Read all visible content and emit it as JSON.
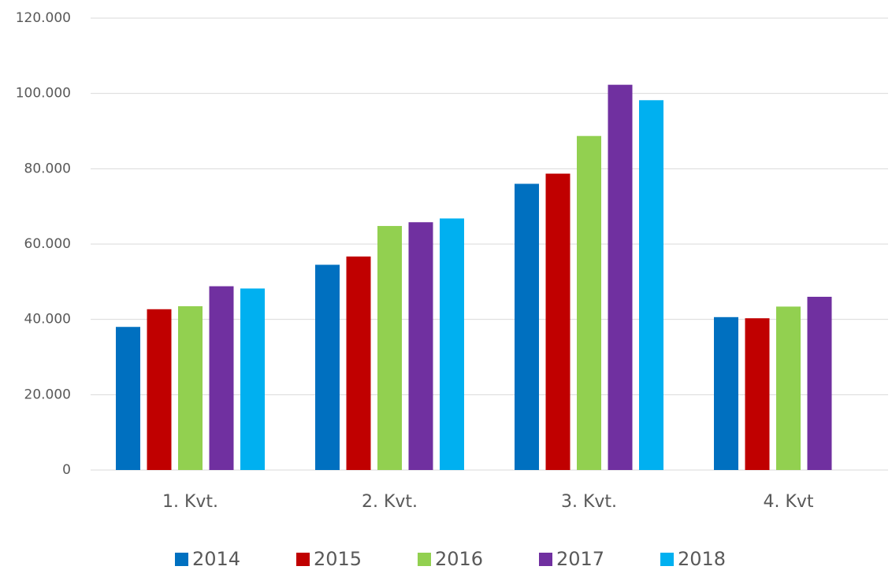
{
  "chart_data": {
    "type": "bar",
    "categories": [
      "1. Kvt.",
      "2. Kvt.",
      "3. Kvt.",
      "4. Kvt"
    ],
    "series": [
      {
        "name": "2014",
        "color": "#0070c0",
        "values": [
          38000,
          54500,
          76000,
          40600
        ]
      },
      {
        "name": "2015",
        "color": "#c00000",
        "values": [
          42700,
          56700,
          78700,
          40300
        ]
      },
      {
        "name": "2016",
        "color": "#92d050",
        "values": [
          43500,
          64800,
          88700,
          43400
        ]
      },
      {
        "name": "2017",
        "color": "#7030a0",
        "values": [
          48800,
          65800,
          102300,
          46000
        ]
      },
      {
        "name": "2018",
        "color": "#00b0f0",
        "values": [
          48200,
          66800,
          98200,
          null
        ]
      }
    ],
    "ylim": [
      0,
      120000
    ],
    "yticks": [
      0,
      {
        "value": 20000,
        "label": "20.000"
      },
      {
        "value": 40000,
        "label": "40.000"
      },
      {
        "value": 60000,
        "label": "60.000"
      },
      {
        "value": 80000,
        "label": "80.000"
      },
      {
        "value": 100000,
        "label": "100.000"
      },
      {
        "value": 120000,
        "label": "120.000"
      }
    ],
    "grid": true,
    "legend": "bottom"
  }
}
